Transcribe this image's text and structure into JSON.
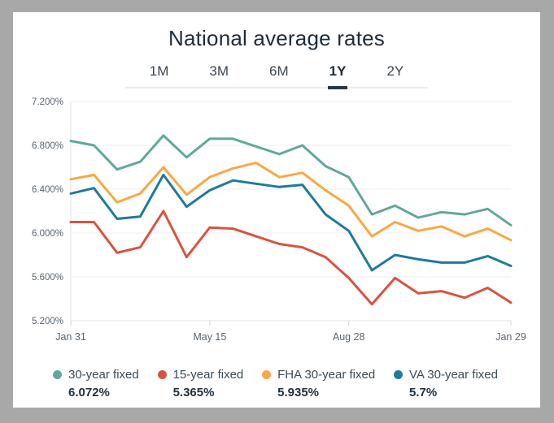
{
  "window": {
    "outer_background": "#a8a8a8",
    "card_background": "#ffffff"
  },
  "header": {
    "title": "National average rates"
  },
  "tabs": {
    "items": [
      "1M",
      "3M",
      "6M",
      "1Y",
      "2Y"
    ],
    "active": "1Y"
  },
  "chart_data": {
    "type": "line",
    "title": "National average rates",
    "num_points": 20,
    "ylim": [
      5.2,
      7.2
    ],
    "grid": "horizontal",
    "legend_position": "bottom",
    "y_ticks": [
      {
        "label": "7.200%",
        "value": 7.2
      },
      {
        "label": "6.800%",
        "value": 6.8
      },
      {
        "label": "6.400%",
        "value": 6.4
      },
      {
        "label": "6.000%",
        "value": 6.0
      },
      {
        "label": "5.600%",
        "value": 5.6
      },
      {
        "label": "5.200%",
        "value": 5.2
      }
    ],
    "x_tick_labels": [
      "Jan 31",
      "May 15",
      "Aug 28",
      "Jan 29"
    ],
    "x_tick_indices": [
      0,
      6,
      12,
      19
    ],
    "series": [
      {
        "name": "30-year fixed",
        "color": "#62a89a",
        "current_value_label": "6.072%",
        "values": [
          6.84,
          6.8,
          6.58,
          6.65,
          6.89,
          6.69,
          6.86,
          6.86,
          6.79,
          6.72,
          6.8,
          6.61,
          6.51,
          6.17,
          6.25,
          6.14,
          6.19,
          6.17,
          6.22,
          6.072
        ]
      },
      {
        "name": "15-year fixed",
        "color": "#d9533f",
        "current_value_label": "5.365%",
        "values": [
          6.1,
          6.1,
          5.82,
          5.87,
          6.2,
          5.78,
          6.05,
          6.04,
          5.97,
          5.9,
          5.87,
          5.78,
          5.59,
          5.35,
          5.59,
          5.45,
          5.47,
          5.41,
          5.5,
          5.365
        ]
      },
      {
        "name": "FHA 30-year fixed",
        "color": "#f8a844",
        "current_value_label": "5.935%",
        "values": [
          6.49,
          6.53,
          6.28,
          6.36,
          6.6,
          6.35,
          6.51,
          6.59,
          6.64,
          6.51,
          6.55,
          6.39,
          6.25,
          5.97,
          6.1,
          6.02,
          6.06,
          5.97,
          6.04,
          5.935
        ]
      },
      {
        "name": "VA 30-year fixed",
        "color": "#1f7a9c",
        "current_value_label": "5.7%",
        "values": [
          6.36,
          6.41,
          6.13,
          6.15,
          6.53,
          6.24,
          6.39,
          6.48,
          6.45,
          6.42,
          6.44,
          6.17,
          6.02,
          5.66,
          5.8,
          5.76,
          5.73,
          5.73,
          5.79,
          5.7
        ]
      }
    ]
  }
}
